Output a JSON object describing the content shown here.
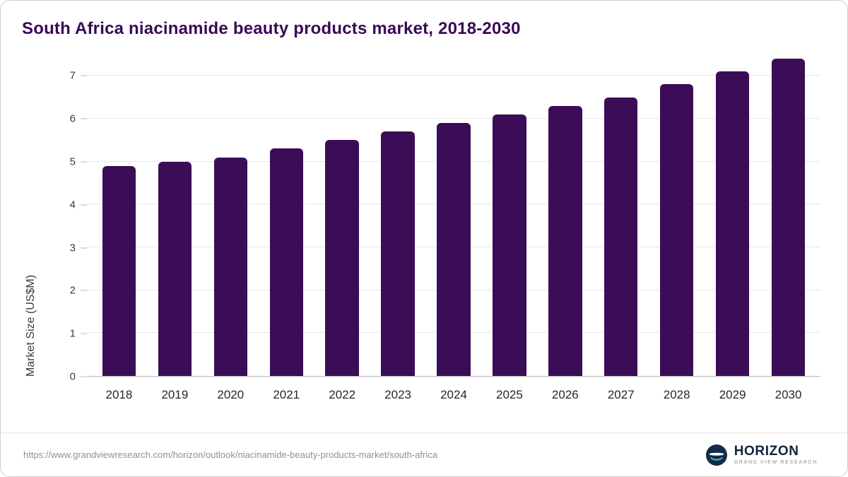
{
  "chart_data": {
    "type": "bar",
    "title": "South Africa niacinamide beauty products market, 2018-2030",
    "categories": [
      "2018",
      "2019",
      "2020",
      "2021",
      "2022",
      "2023",
      "2024",
      "2025",
      "2026",
      "2027",
      "2028",
      "2029",
      "2030"
    ],
    "values": [
      4.9,
      5.0,
      5.1,
      5.3,
      5.5,
      5.7,
      5.9,
      6.1,
      6.3,
      6.5,
      6.8,
      7.1,
      7.4
    ],
    "xlabel": "",
    "ylabel": "Market Size (US$M)",
    "ylim": [
      0,
      7.5
    ],
    "yticks": [
      0,
      1,
      2,
      3,
      4,
      5,
      6,
      7
    ],
    "bar_color": "#3b0d56",
    "grid": true,
    "legend": "none"
  },
  "colors": {
    "title": "#3a0956",
    "bar": "#3b0d56",
    "logo_navy": "#142c47",
    "logo_blue": "#49b8e5"
  },
  "footer": {
    "source_url": "https://www.grandviewresearch.com/horizon/outlook/niacinamide-beauty-products-market/south-africa",
    "logo_title": "HORIZON",
    "logo_subtitle": "GRAND VIEW RESEARCH"
  }
}
